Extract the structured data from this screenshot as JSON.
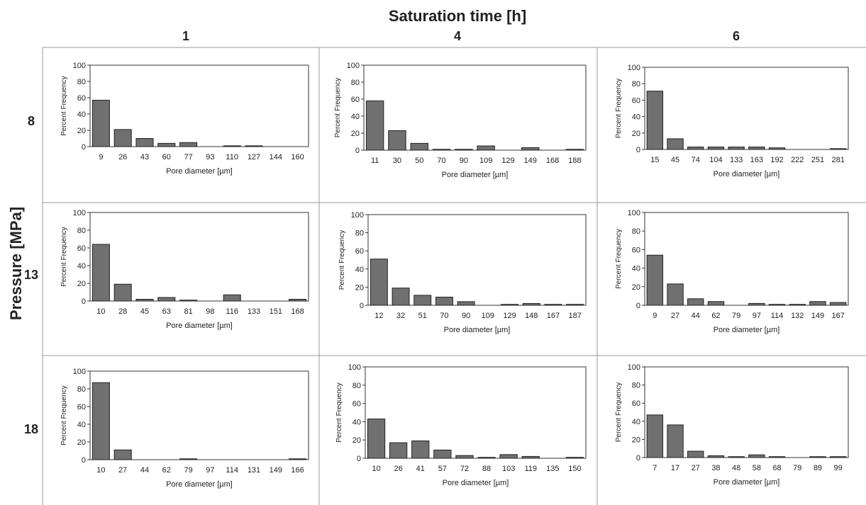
{
  "figure": {
    "column_axis_title": "Saturation time [h]",
    "row_axis_title": "Pressure [MPa]",
    "columns": [
      "1",
      "4",
      "6"
    ],
    "rows": [
      "8",
      "13",
      "18"
    ]
  },
  "chart_data": [
    {
      "type": "bar",
      "pressure": "8",
      "time": "1",
      "xlabel": "Pore diameter [µm]",
      "ylabel": "Percent Frequency",
      "ylim": [
        0,
        100
      ],
      "yticks": [
        0,
        20,
        40,
        60,
        80,
        100
      ],
      "categories": [
        "9",
        "26",
        "43",
        "60",
        "77",
        "93",
        "110",
        "127",
        "144",
        "160"
      ],
      "values": [
        57,
        21,
        10,
        4,
        5,
        0,
        1,
        1,
        0,
        0
      ]
    },
    {
      "type": "bar",
      "pressure": "8",
      "time": "4",
      "xlabel": "Pore diameter [µm]",
      "ylabel": "Percent Frequency",
      "ylim": [
        0,
        100
      ],
      "yticks": [
        0,
        20,
        40,
        60,
        80,
        100
      ],
      "categories": [
        "11",
        "30",
        "50",
        "70",
        "90",
        "109",
        "129",
        "149",
        "168",
        "188"
      ],
      "values": [
        58,
        23,
        8,
        1,
        1,
        5,
        0,
        3,
        0,
        1
      ]
    },
    {
      "type": "bar",
      "pressure": "8",
      "time": "6",
      "xlabel": "Pore diameter [µm]",
      "ylabel": "Percent Frequency",
      "ylim": [
        0,
        100
      ],
      "yticks": [
        0,
        20,
        40,
        60,
        80,
        100
      ],
      "categories": [
        "15",
        "45",
        "74",
        "104",
        "133",
        "163",
        "192",
        "222",
        "251",
        "281"
      ],
      "values": [
        71,
        13,
        3,
        3,
        3,
        3,
        2,
        0,
        0,
        1
      ]
    },
    {
      "type": "bar",
      "pressure": "13",
      "time": "1",
      "xlabel": "Pore diameter [µm]",
      "ylabel": "Percent Frequency",
      "ylim": [
        0,
        100
      ],
      "yticks": [
        0,
        20,
        40,
        60,
        80,
        100
      ],
      "categories": [
        "10",
        "28",
        "45",
        "63",
        "81",
        "98",
        "116",
        "133",
        "151",
        "168"
      ],
      "values": [
        64,
        19,
        2,
        4,
        1,
        0,
        7,
        0,
        0,
        2
      ]
    },
    {
      "type": "bar",
      "pressure": "13",
      "time": "4",
      "xlabel": "Pore diameter [µm]",
      "ylabel": "Percent Frequency",
      "ylim": [
        0,
        100
      ],
      "yticks": [
        0,
        20,
        40,
        60,
        80,
        100
      ],
      "categories": [
        "12",
        "32",
        "51",
        "70",
        "90",
        "109",
        "129",
        "148",
        "167",
        "187"
      ],
      "values": [
        51,
        19,
        11,
        9,
        4,
        0,
        1,
        2,
        1,
        1
      ]
    },
    {
      "type": "bar",
      "pressure": "13",
      "time": "6",
      "xlabel": "Pore diameter [µm]",
      "ylabel": "Percent Frequency",
      "ylim": [
        0,
        100
      ],
      "yticks": [
        0,
        20,
        40,
        60,
        80,
        100
      ],
      "categories": [
        "9",
        "27",
        "44",
        "62",
        "79",
        "97",
        "114",
        "132",
        "149",
        "167"
      ],
      "values": [
        54,
        23,
        7,
        4,
        0,
        2,
        1,
        1,
        4,
        3
      ]
    },
    {
      "type": "bar",
      "pressure": "18",
      "time": "1",
      "xlabel": "Pore diameter [µm]",
      "ylabel": "Percent Frequency",
      "ylim": [
        0,
        100
      ],
      "yticks": [
        0,
        20,
        40,
        60,
        80,
        100
      ],
      "categories": [
        "10",
        "27",
        "44",
        "62",
        "79",
        "97",
        "114",
        "131",
        "149",
        "166"
      ],
      "values": [
        87,
        11,
        0,
        0,
        1,
        0,
        0,
        0,
        0,
        1
      ]
    },
    {
      "type": "bar",
      "pressure": "18",
      "time": "4",
      "xlabel": "Pore diameter [µm]",
      "ylabel": "Percent Frequency",
      "ylim": [
        0,
        100
      ],
      "yticks": [
        0,
        20,
        40,
        60,
        80,
        100
      ],
      "categories": [
        "10",
        "26",
        "41",
        "57",
        "72",
        "88",
        "103",
        "119",
        "135",
        "150"
      ],
      "values": [
        43,
        17,
        19,
        9,
        3,
        1,
        4,
        2,
        0,
        1
      ]
    },
    {
      "type": "bar",
      "pressure": "18",
      "time": "6",
      "xlabel": "Pore diameter [µm]",
      "ylabel": "Percent Frequency",
      "ylim": [
        0,
        100
      ],
      "yticks": [
        0,
        20,
        40,
        60,
        80,
        100
      ],
      "categories": [
        "7",
        "17",
        "27",
        "38",
        "48",
        "58",
        "68",
        "79",
        "89",
        "99"
      ],
      "values": [
        47,
        36,
        7,
        2,
        1,
        3,
        1,
        0,
        1,
        1
      ]
    }
  ],
  "colors": {
    "bar_fill": "#707070",
    "bar_stroke": "#222222",
    "grid_line": "#555555",
    "axis": "#333333",
    "text": "#222222"
  }
}
